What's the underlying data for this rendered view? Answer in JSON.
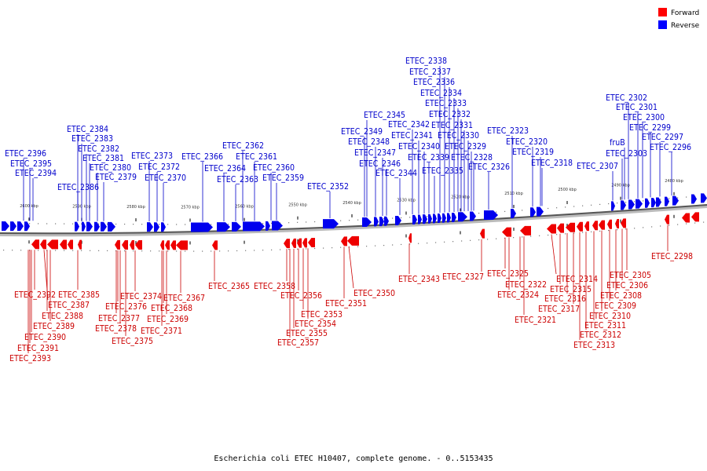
{
  "caption": "Escherichia coli ETEC H10407, complete genome. - 0..5153435",
  "legend": [
    {
      "label": "Forward",
      "color": "#ff0000"
    },
    {
      "label": "Reverse",
      "color": "#0000ff"
    }
  ],
  "scale_ticks": [
    "2600 kbp",
    "2590 kbp",
    "2580 kbp",
    "2570 kbp",
    "2560 kbp",
    "2550 kbp",
    "2540 kbp",
    "2530 kbp",
    "2520 kbp",
    "2510 kbp",
    "2500 kbp",
    "2490 kbp",
    "2480 kbp"
  ],
  "forward_labels": [
    "ETEC_2392",
    "ETEC_2390",
    "ETEC_2391",
    "ETEC_2393",
    "ETEC_2387",
    "ETEC_2388",
    "ETEC_2389",
    "ETEC_2385",
    "ETEC_2376",
    "ETEC_2377",
    "ETEC_2378",
    "ETEC_2374",
    "ETEC_2375",
    "ETEC_2368",
    "ETEC_2367",
    "ETEC_2369",
    "ETEC_2371",
    "ETEC_2365",
    "ETEC_2358",
    "ETEC_2356",
    "ETEC_2353",
    "ETEC_2354",
    "ETEC_2355",
    "ETEC_2357",
    "ETEC_2351",
    "ETEC_2350",
    "ETEC_2343",
    "ETEC_2327",
    "ETEC_2325",
    "ETEC_2322",
    "ETEC_2324",
    "ETEC_2321",
    "ETEC_2314",
    "ETEC_2315",
    "ETEC_2316",
    "ETEC_2317",
    "ETEC_2305",
    "ETEC_2306",
    "ETEC_2308",
    "ETEC_2309",
    "ETEC_2310",
    "ETEC_2311",
    "ETEC_2312",
    "ETEC_2313",
    "ETEC_2298"
  ],
  "reverse_labels": [
    "ETEC_2396",
    "ETEC_2395",
    "ETEC_2394",
    "ETEC_2384",
    "ETEC_2383",
    "ETEC_2382",
    "ETEC_2381",
    "ETEC_2380",
    "ETEC_2379",
    "ETEC_2386",
    "ETEC_2373",
    "ETEC_2372",
    "ETEC_2370",
    "ETEC_2366",
    "ETEC_2364",
    "ETEC_2363",
    "ETEC_2362",
    "ETEC_2361",
    "ETEC_2360",
    "ETEC_2359",
    "ETEC_2352",
    "ETEC_2345",
    "ETEC_2349",
    "ETEC_2348",
    "ETEC_2347",
    "ETEC_2346",
    "ETEC_2344",
    "ETEC_2342",
    "ETEC_2341",
    "ETEC_2340",
    "ETEC_2339",
    "ETEC_2335",
    "ETEC_2338",
    "ETEC_2337",
    "ETEC_2336",
    "ETEC_2334",
    "ETEC_2333",
    "ETEC_2332",
    "ETEC_2331",
    "ETEC_2330",
    "ETEC_2329",
    "ETEC_2328",
    "ETEC_2326",
    "ETEC_2323",
    "ETEC_2320",
    "ETEC_2319",
    "ETEC_2318",
    "ETEC_2307",
    "ETEC_2302",
    "ETEC_2301",
    "ETEC_2300",
    "ETEC_2299",
    "fruB",
    "ETEC_2303",
    "ETEC_2297",
    "ETEC_2296"
  ]
}
